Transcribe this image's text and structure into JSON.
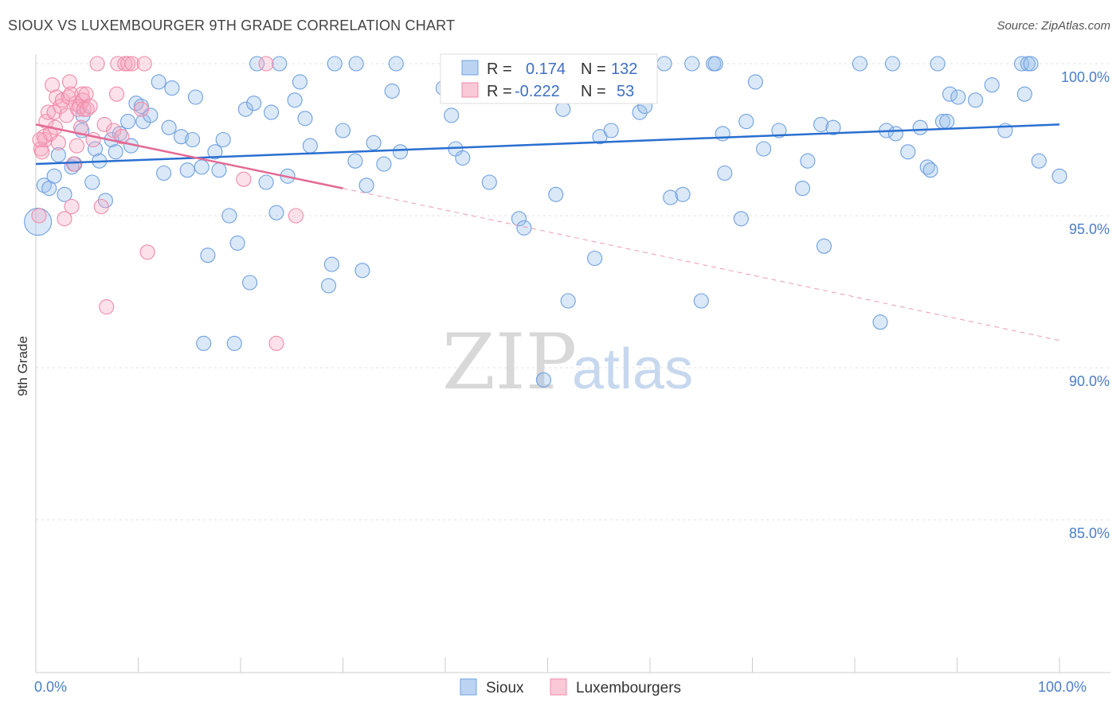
{
  "header": {
    "title": "SIOUX VS LUXEMBOURGER 9TH GRADE CORRELATION CHART",
    "source": "Source: ZipAtlas.com"
  },
  "watermark": {
    "zip": "ZIP",
    "atlas": "atlas"
  },
  "legend_box": {
    "rows": [
      {
        "r_label": "R =",
        "r_value": "0.174",
        "n_label": "N =",
        "n_value": "132",
        "color": "#6fa0e0"
      },
      {
        "r_label": "R =",
        "r_value": "-0.222",
        "n_label": "N =",
        "n_value": "53",
        "color": "#f08aa8"
      }
    ]
  },
  "bottom_legend": [
    {
      "label": "Sioux",
      "color": "#6fa0e0"
    },
    {
      "label": "Luxembourgers",
      "color": "#f08aa8"
    }
  ],
  "chart_data": {
    "type": "scatter",
    "ylabel": "9th Grade",
    "xlim": [
      0,
      100
    ],
    "ylim": [
      80,
      100.8
    ],
    "y_ticks": [
      {
        "value": 100,
        "label": "100.0%"
      },
      {
        "value": 95,
        "label": "95.0%"
      },
      {
        "value": 90,
        "label": "90.0%"
      },
      {
        "value": 85,
        "label": "85.0%"
      }
    ],
    "x_tick_labels": [
      {
        "value": 0,
        "label": "0.0%"
      },
      {
        "value": 100,
        "label": "100.0%"
      }
    ],
    "grid": "horizontal dashed",
    "series": [
      {
        "name": "Sioux",
        "color": "#6fa0e0",
        "trend": {
          "x0": 0,
          "y0": 96.7,
          "x1": 100,
          "y1": 98.0
        },
        "points": [
          [
            0.2,
            94.8
          ],
          [
            0.8,
            96.0
          ],
          [
            1.3,
            95.9
          ],
          [
            1.8,
            96.3
          ],
          [
            2.2,
            97.0
          ],
          [
            2.8,
            95.7
          ],
          [
            3.5,
            96.6
          ],
          [
            3.8,
            96.7
          ],
          [
            4.5,
            97.8
          ],
          [
            4.6,
            98.3
          ],
          [
            5.5,
            96.1
          ],
          [
            5.8,
            97.2
          ],
          [
            6.2,
            96.8
          ],
          [
            6.8,
            95.5
          ],
          [
            7.4,
            97.5
          ],
          [
            7.8,
            97.1
          ],
          [
            8.2,
            97.7
          ],
          [
            9.0,
            98.1
          ],
          [
            9.3,
            97.3
          ],
          [
            9.8,
            98.7
          ],
          [
            10.3,
            98.6
          ],
          [
            10.5,
            98.1
          ],
          [
            11.2,
            98.3
          ],
          [
            12.0,
            99.4
          ],
          [
            12.5,
            96.4
          ],
          [
            13.0,
            97.9
          ],
          [
            13.3,
            99.2
          ],
          [
            14.2,
            97.6
          ],
          [
            14.8,
            96.5
          ],
          [
            15.3,
            97.5
          ],
          [
            15.6,
            98.9
          ],
          [
            16.2,
            96.6
          ],
          [
            16.4,
            90.8
          ],
          [
            16.8,
            93.7
          ],
          [
            17.5,
            97.1
          ],
          [
            17.9,
            96.5
          ],
          [
            18.3,
            97.5
          ],
          [
            18.9,
            95.0
          ],
          [
            19.4,
            90.8
          ],
          [
            19.7,
            94.1
          ],
          [
            20.5,
            98.5
          ],
          [
            20.9,
            92.8
          ],
          [
            21.3,
            98.7
          ],
          [
            21.6,
            100.0
          ],
          [
            22.5,
            96.1
          ],
          [
            23.0,
            98.4
          ],
          [
            23.5,
            95.1
          ],
          [
            23.8,
            100.0
          ],
          [
            24.6,
            96.3
          ],
          [
            25.3,
            98.8
          ],
          [
            25.8,
            99.4
          ],
          [
            26.3,
            98.2
          ],
          [
            26.8,
            97.3
          ],
          [
            28.6,
            92.7
          ],
          [
            28.9,
            93.4
          ],
          [
            29.2,
            100.0
          ],
          [
            30.0,
            97.8
          ],
          [
            31.2,
            96.8
          ],
          [
            31.3,
            100.0
          ],
          [
            31.9,
            93.2
          ],
          [
            32.3,
            96.0
          ],
          [
            33.0,
            97.4
          ],
          [
            34.0,
            96.7
          ],
          [
            34.8,
            99.1
          ],
          [
            35.2,
            100.0
          ],
          [
            35.6,
            97.1
          ],
          [
            39.8,
            99.2
          ],
          [
            40.6,
            98.3
          ],
          [
            41.0,
            97.2
          ],
          [
            41.7,
            96.9
          ],
          [
            42.5,
            100.0
          ],
          [
            44.3,
            96.1
          ],
          [
            45.5,
            100.0
          ],
          [
            47.2,
            94.9
          ],
          [
            47.7,
            94.6
          ],
          [
            48.3,
            100.0
          ],
          [
            49.2,
            99.7
          ],
          [
            49.6,
            89.6
          ],
          [
            49.9,
            100.0
          ],
          [
            50.8,
            95.7
          ],
          [
            51.5,
            98.5
          ],
          [
            52.0,
            92.2
          ],
          [
            54.2,
            100.0
          ],
          [
            54.6,
            93.6
          ],
          [
            55.1,
            97.6
          ],
          [
            55.5,
            100.0
          ],
          [
            56.2,
            97.8
          ],
          [
            57.8,
            100.0
          ],
          [
            59.0,
            98.4
          ],
          [
            59.5,
            98.6
          ],
          [
            61.4,
            100.0
          ],
          [
            62.0,
            95.6
          ],
          [
            63.2,
            95.7
          ],
          [
            64.1,
            100.0
          ],
          [
            65.0,
            92.2
          ],
          [
            66.2,
            100.0
          ],
          [
            66.4,
            100.0
          ],
          [
            67.1,
            97.7
          ],
          [
            67.3,
            96.4
          ],
          [
            68.9,
            94.9
          ],
          [
            69.4,
            98.1
          ],
          [
            70.3,
            99.4
          ],
          [
            71.1,
            97.2
          ],
          [
            72.6,
            97.8
          ],
          [
            74.9,
            95.9
          ],
          [
            75.4,
            96.8
          ],
          [
            76.7,
            98.0
          ],
          [
            77.0,
            94.0
          ],
          [
            77.9,
            97.9
          ],
          [
            80.5,
            100.0
          ],
          [
            82.5,
            91.5
          ],
          [
            83.1,
            97.8
          ],
          [
            83.7,
            100.0
          ],
          [
            84.0,
            97.7
          ],
          [
            85.2,
            97.1
          ],
          [
            86.4,
            97.9
          ],
          [
            87.1,
            96.6
          ],
          [
            87.4,
            96.5
          ],
          [
            88.1,
            100.0
          ],
          [
            88.6,
            98.1
          ],
          [
            89.0,
            98.1
          ],
          [
            89.3,
            99.0
          ],
          [
            90.1,
            98.9
          ],
          [
            91.8,
            98.8
          ],
          [
            93.4,
            99.3
          ],
          [
            94.7,
            97.8
          ],
          [
            96.3,
            100.0
          ],
          [
            96.6,
            99.0
          ],
          [
            96.9,
            100.0
          ],
          [
            97.2,
            100.0
          ],
          [
            98.0,
            96.8
          ],
          [
            100.0,
            96.3
          ]
        ]
      },
      {
        "name": "Luxembourgers",
        "color": "#f08aa8",
        "trend": {
          "x0": 0,
          "y0": 98.0,
          "x1": 30,
          "y1": 95.9,
          "dash_to_x": 100,
          "dash_to_y": 90.9
        },
        "points": [
          [
            0.3,
            95.0
          ],
          [
            0.5,
            97.2
          ],
          [
            0.6,
            97.1
          ],
          [
            0.8,
            97.6
          ],
          [
            0.9,
            97.5
          ],
          [
            1.0,
            98.1
          ],
          [
            1.2,
            98.4
          ],
          [
            1.4,
            97.7
          ],
          [
            1.6,
            99.3
          ],
          [
            1.8,
            98.4
          ],
          [
            1.9,
            97.9
          ],
          [
            2.0,
            98.9
          ],
          [
            2.2,
            97.4
          ],
          [
            2.4,
            98.6
          ],
          [
            2.6,
            98.8
          ],
          [
            2.8,
            94.9
          ],
          [
            3.0,
            98.3
          ],
          [
            3.2,
            98.9
          ],
          [
            3.3,
            99.4
          ],
          [
            3.5,
            95.3
          ],
          [
            3.7,
            96.7
          ],
          [
            3.9,
            98.7
          ],
          [
            4.0,
            97.3
          ],
          [
            4.1,
            98.5
          ],
          [
            4.3,
            98.6
          ],
          [
            4.4,
            97.9
          ],
          [
            4.5,
            99.0
          ],
          [
            4.6,
            98.8
          ],
          [
            4.7,
            98.5
          ],
          [
            4.9,
            99.0
          ],
          [
            5.0,
            98.5
          ],
          [
            5.3,
            98.6
          ],
          [
            5.6,
            97.5
          ],
          [
            6.0,
            100.0
          ],
          [
            6.4,
            95.3
          ],
          [
            6.7,
            98.0
          ],
          [
            6.9,
            92.0
          ],
          [
            7.6,
            97.8
          ],
          [
            7.9,
            99.0
          ],
          [
            8.0,
            100.0
          ],
          [
            8.4,
            97.6
          ],
          [
            8.7,
            100.0
          ],
          [
            9.0,
            100.0
          ],
          [
            9.4,
            100.0
          ],
          [
            10.3,
            98.5
          ],
          [
            10.6,
            100.0
          ],
          [
            10.9,
            93.8
          ],
          [
            20.3,
            96.2
          ],
          [
            22.5,
            100.0
          ],
          [
            23.5,
            90.8
          ],
          [
            25.4,
            95.0
          ],
          [
            0.4,
            97.5
          ],
          [
            3.4,
            99.0
          ]
        ]
      }
    ]
  }
}
